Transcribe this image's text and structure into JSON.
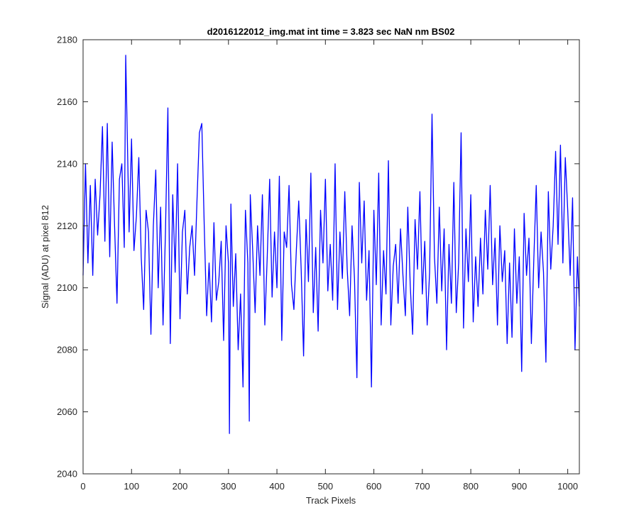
{
  "chart_data": {
    "type": "line",
    "title": "d2016122012_img.mat int time = 3.823 sec  NaN nm BS02",
    "xlabel": "Track Pixels",
    "ylabel": "Signal (ADU) at pixel 812",
    "xlim": [
      0,
      1024
    ],
    "ylim": [
      2040,
      2180
    ],
    "xticks": [
      0,
      100,
      200,
      300,
      400,
      500,
      600,
      700,
      800,
      900,
      1000
    ],
    "yticks": [
      2040,
      2060,
      2080,
      2100,
      2120,
      2140,
      2160,
      2180
    ],
    "grid": false,
    "legend": "none",
    "series": [
      {
        "color": "#0000ff",
        "x": [
          0,
          5,
          10,
          15,
          20,
          25,
          30,
          35,
          40,
          45,
          50,
          55,
          60,
          65,
          70,
          75,
          80,
          85,
          88,
          90,
          95,
          100,
          105,
          110,
          115,
          120,
          125,
          130,
          135,
          140,
          145,
          150,
          155,
          160,
          165,
          170,
          175,
          180,
          185,
          190,
          195,
          200,
          205,
          210,
          215,
          220,
          225,
          230,
          235,
          240,
          245,
          250,
          255,
          260,
          265,
          270,
          275,
          280,
          285,
          290,
          295,
          300,
          302,
          305,
          310,
          315,
          320,
          325,
          330,
          335,
          340,
          343,
          345,
          350,
          355,
          360,
          365,
          370,
          375,
          380,
          385,
          390,
          395,
          400,
          405,
          410,
          415,
          420,
          425,
          430,
          435,
          440,
          445,
          450,
          455,
          460,
          465,
          470,
          475,
          480,
          485,
          490,
          495,
          500,
          505,
          510,
          515,
          520,
          525,
          530,
          535,
          540,
          545,
          550,
          555,
          560,
          565,
          570,
          575,
          580,
          585,
          590,
          595,
          600,
          605,
          610,
          615,
          620,
          625,
          630,
          635,
          640,
          645,
          650,
          655,
          660,
          665,
          670,
          675,
          680,
          685,
          690,
          695,
          700,
          705,
          710,
          715,
          720,
          725,
          730,
          735,
          740,
          745,
          750,
          755,
          760,
          765,
          770,
          775,
          780,
          785,
          790,
          795,
          800,
          805,
          810,
          815,
          820,
          825,
          830,
          835,
          840,
          845,
          850,
          855,
          860,
          865,
          870,
          875,
          880,
          885,
          890,
          895,
          900,
          905,
          910,
          915,
          920,
          925,
          930,
          935,
          940,
          945,
          950,
          955,
          960,
          965,
          970,
          975,
          980,
          985,
          990,
          995,
          1000,
          1005,
          1010,
          1015,
          1020,
          1024
        ],
        "y": [
          2104,
          2140,
          2108,
          2133,
          2104,
          2135,
          2117,
          2130,
          2152,
          2115,
          2153,
          2110,
          2147,
          2120,
          2095,
          2135,
          2140,
          2113,
          2175,
          2159,
          2118,
          2148,
          2112,
          2123,
          2142,
          2110,
          2093,
          2125,
          2118,
          2085,
          2120,
          2138,
          2100,
          2126,
          2088,
          2118,
          2158,
          2082,
          2130,
          2105,
          2140,
          2090,
          2118,
          2125,
          2098,
          2113,
          2120,
          2104,
          2128,
          2150,
          2153,
          2120,
          2091,
          2108,
          2089,
          2121,
          2096,
          2102,
          2115,
          2083,
          2120,
          2108,
          2053,
          2127,
          2094,
          2111,
          2080,
          2098,
          2068,
          2125,
          2108,
          2057,
          2130,
          2112,
          2092,
          2120,
          2104,
          2130,
          2088,
          2110,
          2135,
          2097,
          2118,
          2100,
          2136,
          2083,
          2118,
          2113,
          2133,
          2101,
          2093,
          2112,
          2128,
          2106,
          2078,
          2122,
          2102,
          2137,
          2092,
          2113,
          2086,
          2125,
          2108,
          2135,
          2099,
          2114,
          2096,
          2140,
          2093,
          2118,
          2103,
          2131,
          2106,
          2091,
          2120,
          2103,
          2071,
          2134,
          2108,
          2128,
          2096,
          2112,
          2068,
          2125,
          2101,
          2137,
          2088,
          2112,
          2098,
          2141,
          2088,
          2107,
          2114,
          2095,
          2119,
          2104,
          2091,
          2126,
          2101,
          2085,
          2122,
          2106,
          2131,
          2098,
          2115,
          2088,
          2105,
          2156,
          2110,
          2095,
          2126,
          2099,
          2119,
          2080,
          2114,
          2095,
          2134,
          2092,
          2108,
          2150,
          2087,
          2119,
          2102,
          2130,
          2089,
          2110,
          2094,
          2116,
          2098,
          2125,
          2106,
          2133,
          2101,
          2116,
          2088,
          2120,
          2102,
          2112,
          2082,
          2108,
          2084,
          2119,
          2095,
          2110,
          2073,
          2124,
          2104,
          2116,
          2082,
          2109,
          2133,
          2100,
          2118,
          2105,
          2076,
          2131,
          2106,
          2120,
          2144,
          2114,
          2146,
          2108,
          2142,
          2125,
          2104,
          2129,
          2080,
          2110,
          2094
        ]
      }
    ]
  }
}
